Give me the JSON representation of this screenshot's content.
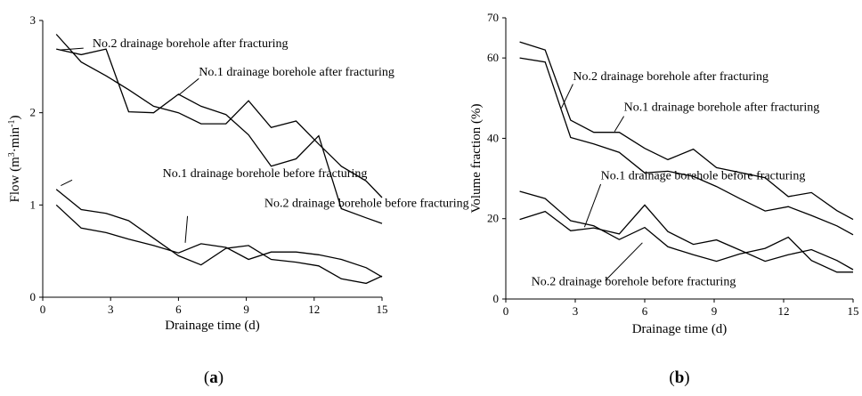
{
  "chart_data": [
    {
      "type": "line",
      "panel_label": {
        "open": "(",
        "letter": "a",
        "close": ")"
      },
      "xlabel": "Drainage time (d)",
      "ylabel": {
        "prefix": "Flow (m",
        "sup1": "3",
        "mid": "·min",
        "sup2": "-1",
        "suffix": ")"
      },
      "xlim": [
        0,
        15
      ],
      "ylim": [
        0,
        3
      ],
      "xticks": [
        "0",
        "3",
        "6",
        "9",
        "12",
        "15"
      ],
      "yticks": [
        "0",
        "1",
        "2",
        "3"
      ],
      "grid": false,
      "series": [
        {
          "name": "No.1 drainage borehole after fracturing",
          "x": [
            0.6,
            1.7,
            2.8,
            3.8,
            4.9,
            6.0,
            7.0,
            8.1,
            9.1,
            10.1,
            11.2,
            12.2,
            13.2,
            14.3,
            15.0
          ],
          "y": [
            2.85,
            2.55,
            2.4,
            2.25,
            2.07,
            2.0,
            1.88,
            1.88,
            2.13,
            1.84,
            1.91,
            1.66,
            1.42,
            1.26,
            1.08
          ]
        },
        {
          "name": "No.2 drainage borehole after fracturing",
          "x": [
            0.6,
            1.7,
            2.8,
            3.8,
            4.9,
            6.0,
            7.0,
            8.1,
            9.1,
            10.1,
            11.2,
            12.2,
            13.2,
            14.3,
            15.0
          ],
          "y": [
            2.69,
            2.63,
            2.69,
            2.01,
            2.0,
            2.2,
            2.07,
            1.98,
            1.76,
            1.42,
            1.5,
            1.75,
            0.96,
            0.86,
            0.8
          ]
        },
        {
          "name": "No.1 drainage borehole before fracturing",
          "x": [
            0.6,
            1.7,
            2.8,
            3.8,
            4.9,
            6.0,
            7.0,
            8.1,
            9.1,
            10.1,
            11.2,
            12.2,
            13.2,
            14.3,
            15.0
          ],
          "y": [
            1.17,
            0.95,
            0.91,
            0.83,
            0.64,
            0.45,
            0.35,
            0.53,
            0.56,
            0.41,
            0.38,
            0.34,
            0.2,
            0.15,
            0.23
          ]
        },
        {
          "name": "No.2 drainage borehole before fracturing",
          "x": [
            0.6,
            1.7,
            2.8,
            3.8,
            4.9,
            6.0,
            7.0,
            8.1,
            9.1,
            10.1,
            11.2,
            12.2,
            13.2,
            14.3,
            15.0
          ],
          "y": [
            1.0,
            0.75,
            0.7,
            0.63,
            0.56,
            0.48,
            0.58,
            0.54,
            0.41,
            0.49,
            0.49,
            0.46,
            0.41,
            0.32,
            0.22
          ]
        }
      ],
      "annotations": [
        {
          "text": "No.2 drainage borehole after fracturing",
          "x": 2.2,
          "y": 2.71
        },
        {
          "text": "No.1 drainage borehole after fracturing",
          "x": 6.9,
          "y": 2.4
        },
        {
          "text": "No.1 drainage borehole before fracturing",
          "x": 5.3,
          "y": 1.3
        },
        {
          "text": "No.2 drainage borehole before fracturing",
          "x": 9.8,
          "y": 0.98
        }
      ]
    },
    {
      "type": "line",
      "panel_label": {
        "open": "(",
        "letter": "b",
        "close": ")"
      },
      "xlabel": "Drainage time (d)",
      "ylabel": {
        "prefix": "Volume fraction (%)"
      },
      "xlim": [
        0,
        15
      ],
      "ylim": [
        0,
        70
      ],
      "xticks": [
        "0",
        "3",
        "6",
        "9",
        "12",
        "15"
      ],
      "yticks": [
        "0",
        "20",
        "40",
        "60",
        "70"
      ],
      "grid": false,
      "series": [
        {
          "name": "No.2 drainage borehole after fracturing",
          "x": [
            0.6,
            1.7,
            2.8,
            3.8,
            4.9,
            6.0,
            7.0,
            8.1,
            9.1,
            10.1,
            11.2,
            12.2,
            13.2,
            14.3,
            15.0
          ],
          "y": [
            64.0,
            62.0,
            44.5,
            41.5,
            41.5,
            37.5,
            34.7,
            37.3,
            32.7,
            31.5,
            30.2,
            25.5,
            26.5,
            22.0,
            19.8
          ]
        },
        {
          "name": "No.1 drainage borehole after fracturing",
          "x": [
            0.6,
            1.7,
            2.8,
            3.8,
            4.9,
            6.0,
            7.0,
            8.1,
            9.1,
            10.1,
            11.2,
            12.2,
            13.2,
            14.3,
            15.0
          ],
          "y": [
            60.0,
            59.0,
            40.2,
            38.6,
            36.5,
            31.4,
            31.8,
            30.5,
            28.0,
            25.0,
            21.9,
            23.0,
            20.8,
            18.2,
            16.0
          ]
        },
        {
          "name": "No.1 drainage borehole before fracturing",
          "x": [
            0.6,
            1.7,
            2.8,
            3.8,
            4.9,
            6.0,
            7.0,
            8.1,
            9.1,
            10.1,
            11.2,
            12.2,
            13.2,
            14.3,
            15.0
          ],
          "y": [
            26.8,
            25.0,
            19.5,
            18.2,
            14.8,
            17.8,
            13.0,
            11.0,
            9.4,
            11.2,
            12.6,
            15.4,
            9.6,
            6.7,
            6.7
          ]
        },
        {
          "name": "No.2 drainage borehole before fracturing",
          "x": [
            0.6,
            1.7,
            2.8,
            3.8,
            4.9,
            6.0,
            7.0,
            8.1,
            9.1,
            10.1,
            11.2,
            12.2,
            13.2,
            14.3,
            15.0
          ],
          "y": [
            19.8,
            21.8,
            17.0,
            17.7,
            16.2,
            23.4,
            16.8,
            13.6,
            14.7,
            12.2,
            9.4,
            11.0,
            12.3,
            9.6,
            7.3
          ]
        }
      ],
      "annotations": [
        {
          "text": "No.2 drainage borehole after fracturing",
          "x": 2.9,
          "y": 54.5
        },
        {
          "text": "No.1 drainage borehole after fracturing",
          "x": 5.1,
          "y": 46.8
        },
        {
          "text": "No.1 drainage borehole before fracturing",
          "x": 4.1,
          "y": 29.8
        },
        {
          "text": "No.2 drainage borehole before fracturing",
          "x": 1.1,
          "y": 3.4
        }
      ]
    }
  ]
}
